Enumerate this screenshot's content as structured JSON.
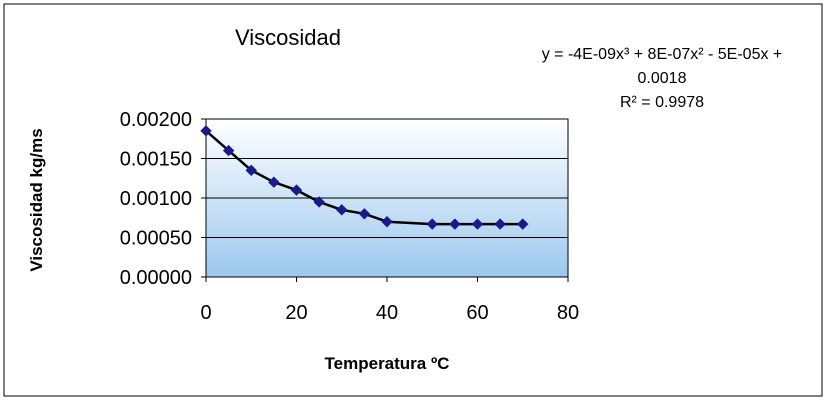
{
  "chart_data": {
    "type": "scatter",
    "title": "Viscosidad",
    "xlabel": "Temperatura ºC",
    "ylabel": "Viscosidad kg/ms",
    "xlim": [
      0,
      80
    ],
    "ylim": [
      0,
      0.002
    ],
    "x_ticks": [
      "0",
      "20",
      "40",
      "60",
      "80"
    ],
    "y_ticks": [
      "0.00000",
      "0.00050",
      "0.00100",
      "0.00150",
      "0.00200"
    ],
    "grid": "horizontal",
    "legend": "none",
    "points": {
      "x": [
        0,
        5,
        10,
        15,
        20,
        25,
        30,
        35,
        40,
        50,
        55,
        60,
        65,
        70
      ],
      "y": [
        0.00185,
        0.0016,
        0.00135,
        0.0012,
        0.0011,
        0.00095,
        0.00085,
        0.0008,
        0.0007,
        0.00067,
        0.00067,
        0.00067,
        0.00067,
        0.00067
      ]
    },
    "trendline": {
      "type": "polynomial",
      "coefficients": [
        -4e-09,
        8e-07,
        -5e-05,
        0.0018
      ],
      "equation_line1": "y = -4E-09x³ + 8E-07x² - 5E-05x +",
      "equation_line2": "0.0018",
      "r_squared": "R² = 0.9978"
    },
    "colors": {
      "marker": "#1a1a8c",
      "trendline": "#000000",
      "plot_bg_top": "#ffffff",
      "plot_bg_bottom": "#9cc8ee",
      "gridline": "#000000",
      "border": "#000000"
    }
  }
}
